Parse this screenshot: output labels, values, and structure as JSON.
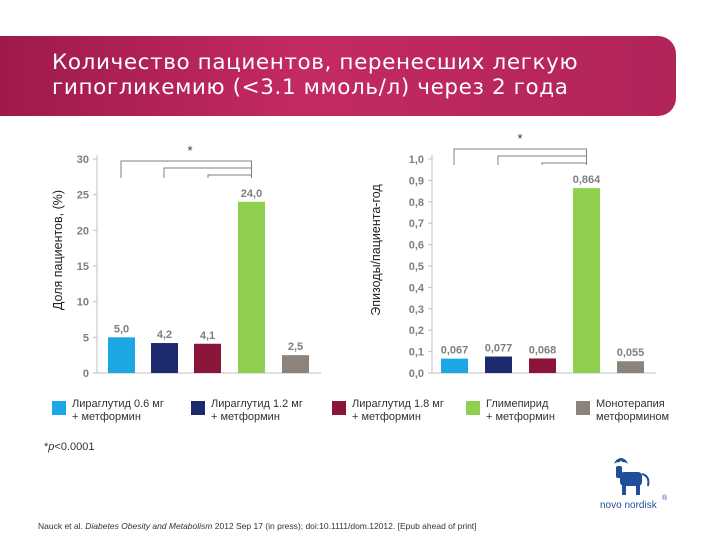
{
  "header": {
    "title_line1": "Количество пациентов, перенесших легкую",
    "title_line2": "гипогликемию (<3.1 ммоль/л) через 2 года"
  },
  "chart_data": [
    {
      "type": "bar",
      "ylabel": "Доля пациентов, (%)",
      "ylim": [
        0,
        30
      ],
      "yticks": [
        "0",
        "5",
        "10",
        "15",
        "20",
        "25",
        "30"
      ],
      "categories": [
        "Лираглутид 0.6 мг + метформин",
        "Лираглутид 1.2 мг + метформин",
        "Лираглутид 1.8 мг + метформин",
        "Глимепирид + метформин",
        "Монотерапия метформином"
      ],
      "values": [
        5.0,
        4.2,
        4.1,
        24.0,
        2.5
      ],
      "value_labels": [
        "5,0",
        "4,2",
        "4,1",
        "24,0",
        "2,5"
      ],
      "significance_marker": "*",
      "grid": false
    },
    {
      "type": "bar",
      "ylabel": "Эпизоды/пациента-год",
      "ylim": [
        0,
        1.0
      ],
      "yticks": [
        "0,0",
        "0,1",
        "0,2",
        "0,3",
        "0,4",
        "0,5",
        "0,6",
        "0,7",
        "0,8",
        "0,9",
        "1,0"
      ],
      "categories": [
        "Лираглутид 0.6 мг + метформин",
        "Лираглутид 1.2 мг + метформин",
        "Лираглутид 1.8 мг + метформин",
        "Глимепирид + метформин",
        "Монотерапия метформином"
      ],
      "values": [
        0.067,
        0.077,
        0.068,
        0.864,
        0.055
      ],
      "value_labels": [
        "0,067",
        "0,077",
        "0,068",
        "0,864",
        "0,055"
      ],
      "significance_marker": "*",
      "grid": false
    }
  ],
  "colors": [
    "#1aa7e4",
    "#1e2a6e",
    "#8a1538",
    "#8fd14f",
    "#8c837b"
  ],
  "legend": [
    {
      "line1": "Лираглутид 0.6 мг",
      "line2": "+ метформин"
    },
    {
      "line1": "Лираглутид 1.2 мг",
      "line2": "+ метформин"
    },
    {
      "line1": "Лираглутид 1.8 мг",
      "line2": "+ метформин"
    },
    {
      "line1": "Глимепирид",
      "line2": "+ метформин"
    },
    {
      "line1": "Монотерапия",
      "line2": "метформином"
    }
  ],
  "footnote": {
    "prefix": "*",
    "p": "p",
    "rest": "<0.0001"
  },
  "citation": {
    "authors": "Nauck et al.",
    "journal": "Diabetes Obesity and Metabolism",
    "details": "2012 Sep 17 (in press); doi:10.1111/dom.12012. [Epub ahead of print]"
  },
  "logo": {
    "icon": "novo-nordisk-bull-logo",
    "text": "novo nordisk",
    "mark": "®"
  }
}
